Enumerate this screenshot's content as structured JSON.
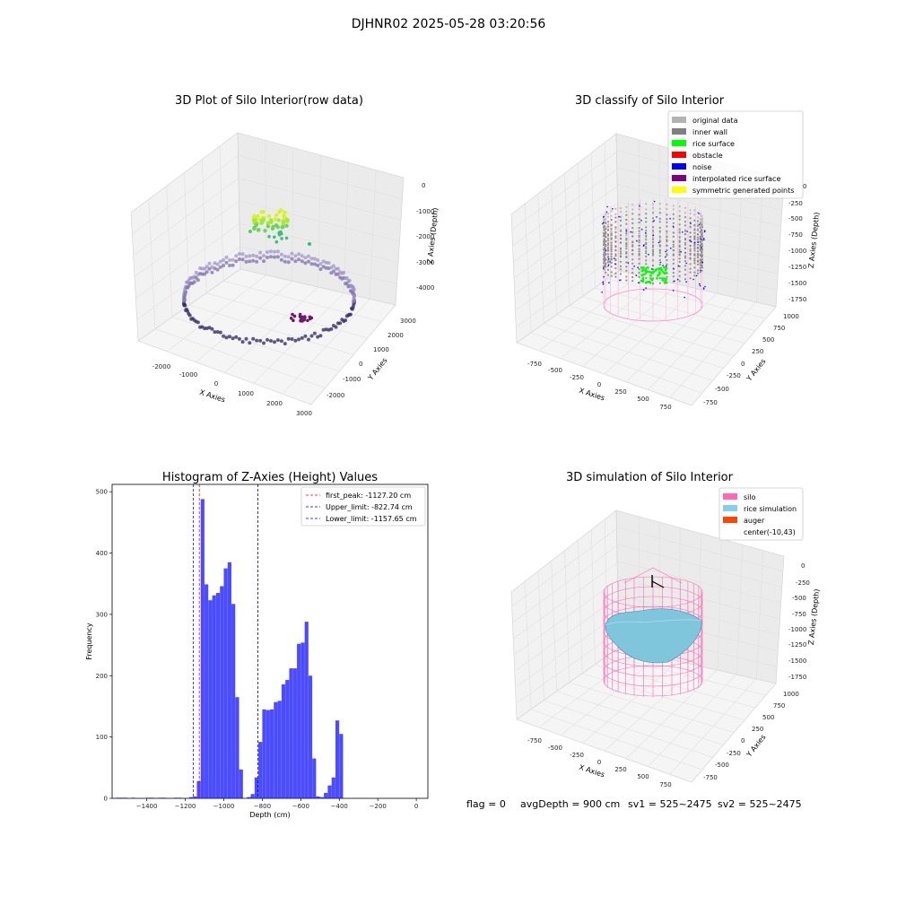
{
  "suptitle": "DJHNR02 2025-05-28 03:20:56",
  "footer": {
    "flag": "flag = 0",
    "avg_depth": "avgDepth = 900 cm",
    "sv1": "sv1 = 525~2475",
    "sv2": "sv2 = 525~2475"
  },
  "panels": {
    "raw": {
      "title": "3D Plot of Silo Interior(row data)",
      "xlabel": "X Axies",
      "ylabel": "Y Axies",
      "zlabel": "Z Axies (Depth)",
      "xticks": [
        "-2000",
        "-1000",
        "0",
        "1000",
        "2000",
        "3000"
      ],
      "yticks": [
        "-2000",
        "-1000",
        "0",
        "1000",
        "2000",
        "3000"
      ],
      "zticks": [
        "0",
        "-1000",
        "-2000",
        "-3000",
        "-4000"
      ]
    },
    "classify": {
      "title": "3D classify of Silo Interior",
      "xlabel": "X Axies",
      "ylabel": "Y Axies",
      "zlabel": "Z Axies (Depth)",
      "xticks": [
        "-750",
        "-500",
        "-250",
        "0",
        "250",
        "500",
        "750"
      ],
      "yticks": [
        "-750",
        "-500",
        "-250",
        "0",
        "250",
        "500",
        "750",
        "1000"
      ],
      "zticks": [
        "0",
        "-250",
        "-500",
        "-750",
        "-1000",
        "-1250",
        "-1500",
        "-1750"
      ],
      "legend": [
        {
          "label": "original data",
          "color": "#b3b3b3"
        },
        {
          "label": "inner wall",
          "color": "#808080"
        },
        {
          "label": "rice surface",
          "color": "#00ff00"
        },
        {
          "label": "obstacle",
          "color": "#ff0000"
        },
        {
          "label": "noise",
          "color": "#0000ff"
        },
        {
          "label": "interpolated rice surface",
          "color": "#800080"
        },
        {
          "label": "symmetric generated points",
          "color": "#ffff00"
        }
      ]
    },
    "simulation": {
      "title": "3D simulation of Silo Interior",
      "xlabel": "X Axies",
      "ylabel": "Y Axies",
      "zlabel": "Z Axies (Depth)",
      "xticks": [
        "-750",
        "-500",
        "-250",
        "0",
        "250",
        "500",
        "750"
      ],
      "yticks": [
        "-750",
        "-500",
        "-250",
        "0",
        "250",
        "500",
        "750",
        "1000"
      ],
      "zticks": [
        "0",
        "-250",
        "-500",
        "-750",
        "-1000",
        "-1250",
        "-1500",
        "-1750"
      ],
      "legend": [
        {
          "label": "silo",
          "color": "#ff69b4"
        },
        {
          "label": "rice simulation",
          "color": "#87ceeb"
        },
        {
          "label": "auger",
          "color": "#ff4500"
        },
        {
          "label": "center(-10,43)",
          "color": ""
        }
      ]
    }
  },
  "chart_data": {
    "type": "bar",
    "title": "Histogram of Z-Axies (Height) Values",
    "xlabel": "Depth (cm)",
    "ylabel": "Frequency",
    "xlim": [
      -1580,
      60
    ],
    "ylim": [
      0,
      512
    ],
    "xticks": [
      -1400,
      -1200,
      -1000,
      -800,
      -600,
      -400,
      -200,
      0
    ],
    "yticks": [
      0,
      100,
      200,
      300,
      400,
      500
    ],
    "bar_color": "#0000ff",
    "bin_width": 19.5,
    "bins": [
      [
        -1560,
        1
      ],
      [
        -1540,
        1
      ],
      [
        -1520,
        1
      ],
      [
        -1480,
        1
      ],
      [
        -1400,
        1
      ],
      [
        -1380,
        1
      ],
      [
        -1340,
        1
      ],
      [
        -1320,
        1
      ],
      [
        -1260,
        1
      ],
      [
        -1240,
        1
      ],
      [
        -1180,
        2
      ],
      [
        -1160,
        3
      ],
      [
        -1140,
        28
      ],
      [
        -1120,
        488
      ],
      [
        -1100,
        349
      ],
      [
        -1080,
        323
      ],
      [
        -1060,
        331
      ],
      [
        -1040,
        335
      ],
      [
        -1020,
        346
      ],
      [
        -1000,
        375
      ],
      [
        -980,
        385
      ],
      [
        -960,
        317
      ],
      [
        -940,
        165
      ],
      [
        -920,
        47
      ],
      [
        -880,
        2
      ],
      [
        -860,
        7
      ],
      [
        -840,
        34
      ],
      [
        -820,
        92
      ],
      [
        -800,
        145
      ],
      [
        -780,
        144
      ],
      [
        -760,
        145
      ],
      [
        -740,
        157
      ],
      [
        -720,
        159
      ],
      [
        -700,
        186
      ],
      [
        -680,
        193
      ],
      [
        -660,
        212
      ],
      [
        -640,
        212
      ],
      [
        -620,
        252
      ],
      [
        -600,
        254
      ],
      [
        -580,
        288
      ],
      [
        -560,
        200
      ],
      [
        -540,
        65
      ],
      [
        -520,
        3
      ],
      [
        -500,
        2
      ],
      [
        -480,
        9
      ],
      [
        -460,
        21
      ],
      [
        -440,
        34
      ],
      [
        -420,
        127
      ],
      [
        -400,
        105
      ]
    ],
    "lines": [
      {
        "name": "first_peak: -1127.20 cm",
        "x": -1127.2,
        "color": "#ff0000"
      },
      {
        "name": "Upper_limit: -822.74 cm",
        "x": -822.74,
        "color": "#00008b"
      },
      {
        "name": "Lower_limit: -1157.65 cm",
        "x": -1157.65,
        "color": "#0000ff"
      }
    ]
  }
}
